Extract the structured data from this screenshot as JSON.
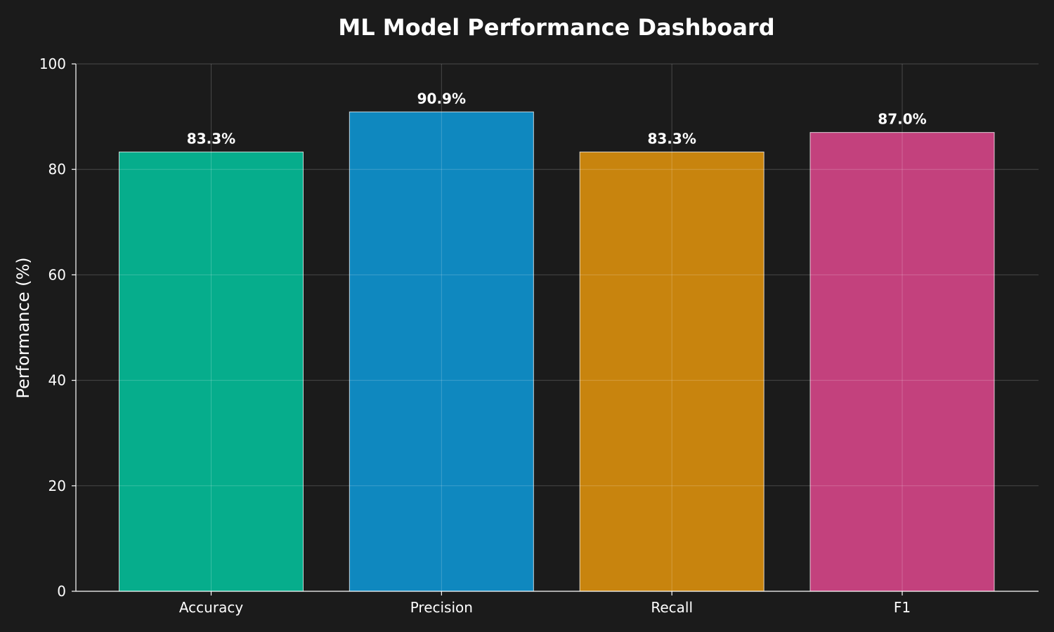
{
  "chart_data": {
    "type": "bar",
    "title": "ML Model Performance Dashboard",
    "xlabel": "",
    "ylabel": "Performance (%)",
    "ylim": [
      0,
      100
    ],
    "yticks": [
      "0",
      "20",
      "40",
      "60",
      "80",
      "100"
    ],
    "categories": [
      "Accuracy",
      "Precision",
      "Recall",
      "F1"
    ],
    "values": [
      83.3,
      90.9,
      83.3,
      87.0
    ],
    "value_labels": [
      "83.3%",
      "90.9%",
      "83.3%",
      "87.0%"
    ],
    "colors": [
      "#06ad8c",
      "#0f88bf",
      "#c8840e",
      "#c3417d"
    ],
    "grid": true,
    "legend": "none",
    "background": "#1b1b1b"
  }
}
